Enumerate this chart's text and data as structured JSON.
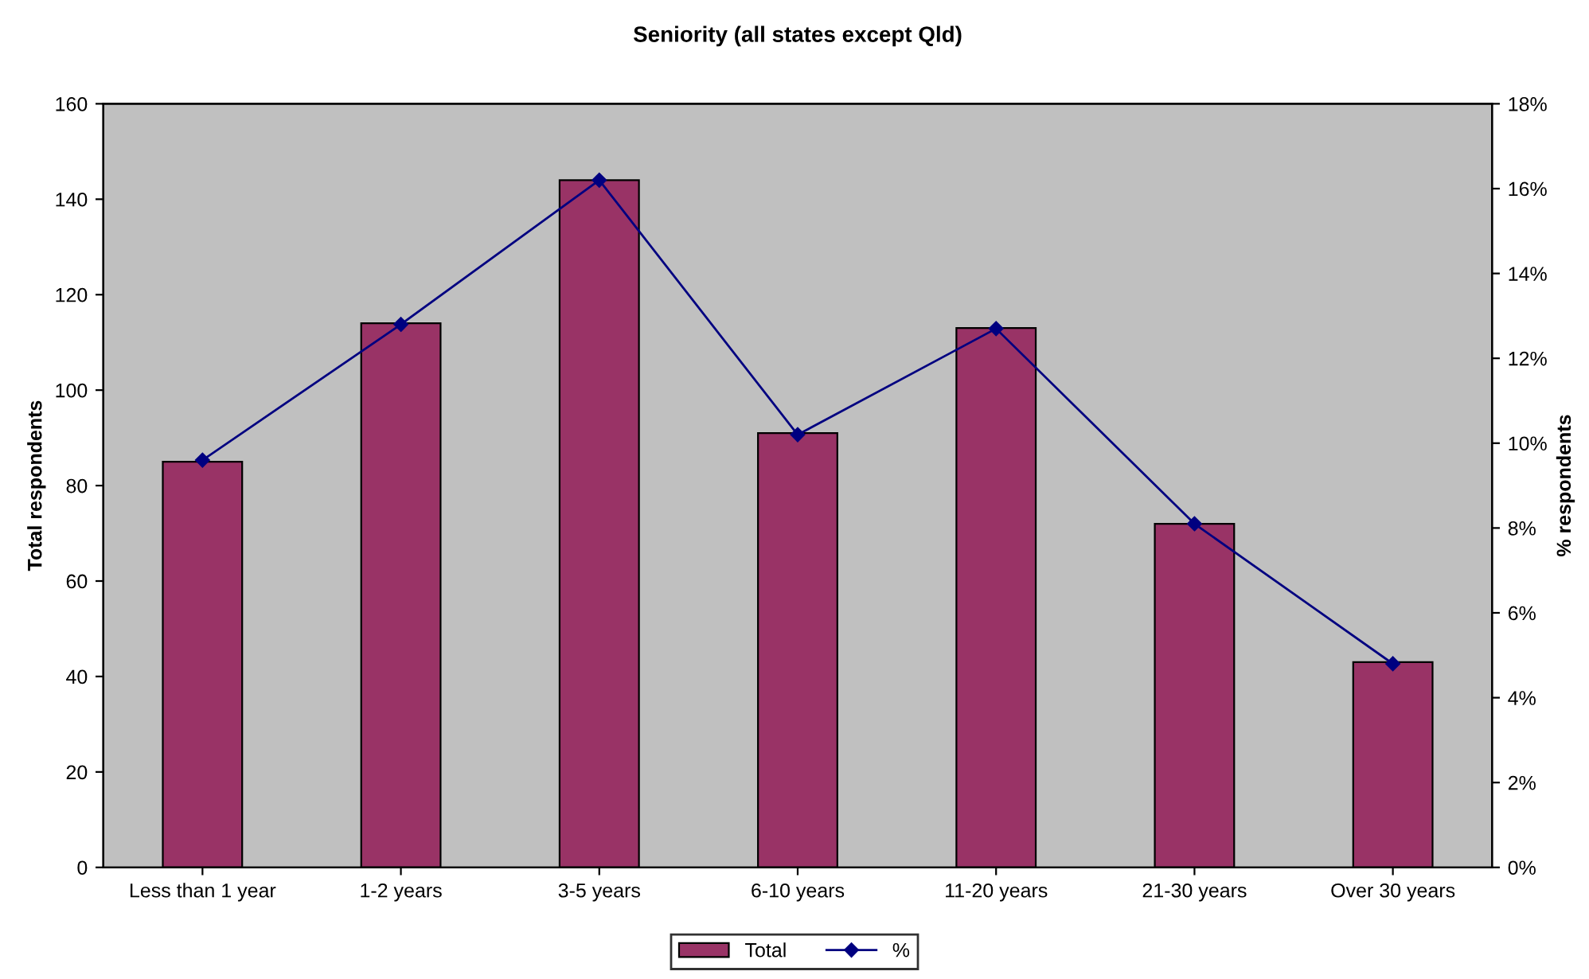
{
  "chart_data": {
    "type": "bar",
    "title": "Seniority (all states except Qld)",
    "ylabel": "Total respondents",
    "y2label": "% respondents",
    "categories": [
      "Less than 1 year",
      "1-2 years",
      "3-5 years",
      "6-10 years",
      "11-20 years",
      "21-30 years",
      "Over 30 years"
    ],
    "series": [
      {
        "name": "Total",
        "color": "#993366",
        "values": [
          85,
          114,
          144,
          91,
          113,
          72,
          43
        ]
      },
      {
        "name": "%",
        "type": "line",
        "axis": "y2",
        "color": "#000080",
        "marker": "diamond",
        "values": [
          9.6,
          12.8,
          16.2,
          10.2,
          12.7,
          8.1,
          4.8
        ]
      }
    ],
    "ylim": [
      0,
      160
    ],
    "yticks": [
      0,
      20,
      40,
      60,
      80,
      100,
      120,
      140,
      160
    ],
    "y2lim": [
      0,
      18
    ],
    "y2ticks": [
      {
        "value": 0,
        "label": "0%"
      },
      {
        "value": 2,
        "label": "2%"
      },
      {
        "value": 4,
        "label": "4%"
      },
      {
        "value": 6,
        "label": "6%"
      },
      {
        "value": 8,
        "label": "8%"
      },
      {
        "value": 10,
        "label": "10%"
      },
      {
        "value": 12,
        "label": "12%"
      },
      {
        "value": 14,
        "label": "14%"
      },
      {
        "value": 16,
        "label": "16%"
      },
      {
        "value": 18,
        "label": "18%"
      }
    ],
    "grid": false,
    "legend": "bottom"
  }
}
